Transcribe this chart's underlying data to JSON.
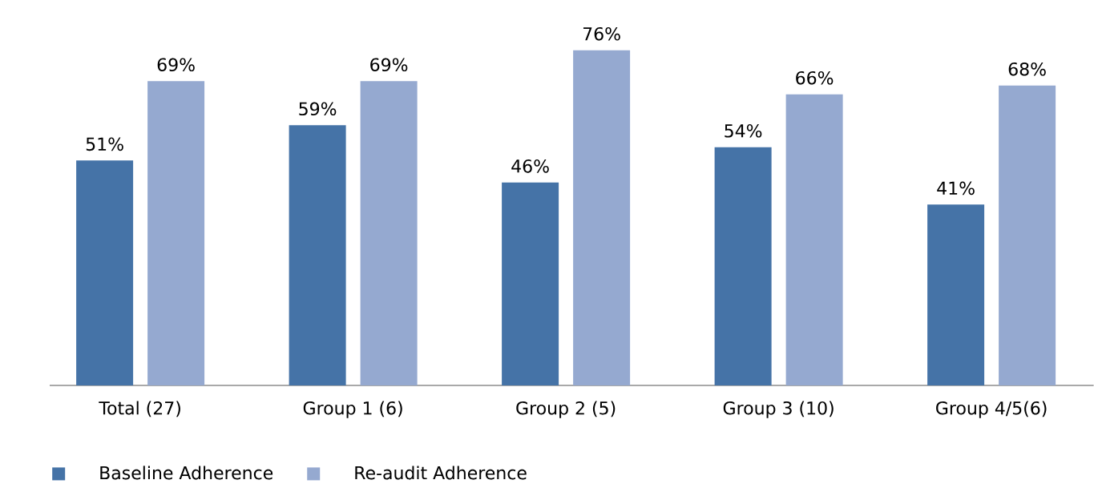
{
  "chart_data": {
    "type": "bar",
    "categories": [
      "Total (27)",
      "Group 1 (6)",
      "Group 2 (5)",
      "Group 3 (10)",
      "Group 4/5(6)"
    ],
    "series": [
      {
        "name": "Baseline Adherence",
        "color": "#4573a7",
        "values": [
          51,
          59,
          46,
          54,
          41
        ],
        "value_labels": [
          "51%",
          "59%",
          "46%",
          "54%",
          "41%"
        ]
      },
      {
        "name": "Re-audit Adherence",
        "color": "#95a9d0",
        "values": [
          69,
          69,
          76,
          66,
          68
        ],
        "value_labels": [
          "69%",
          "69%",
          "76%",
          "66%",
          "68%"
        ]
      }
    ],
    "legend": "bottom"
  }
}
